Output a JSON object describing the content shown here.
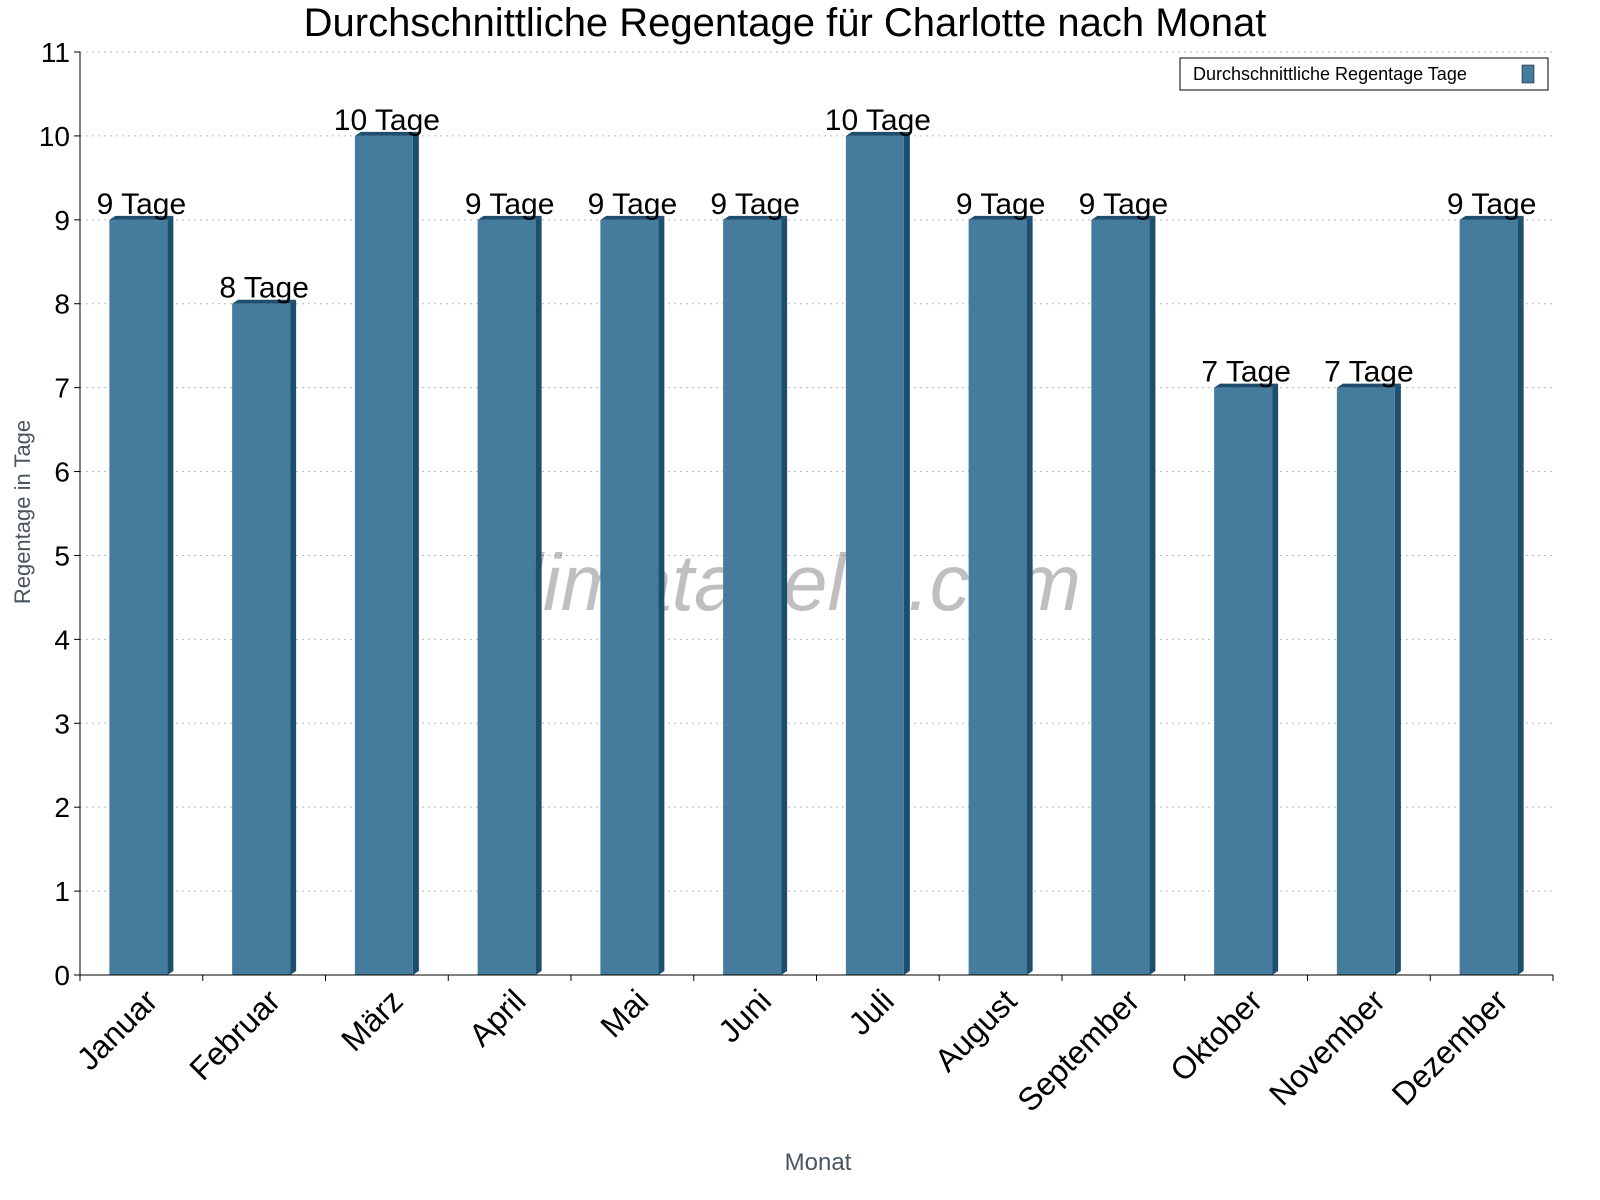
{
  "chart_data": {
    "type": "bar",
    "title": "Durchschnittliche Regentage für Charlotte nach Monat",
    "xlabel": "Monat",
    "ylabel": "Regentage in Tage",
    "categories": [
      "Januar",
      "Februar",
      "März",
      "April",
      "Mai",
      "Juni",
      "Juli",
      "August",
      "September",
      "Oktober",
      "November",
      "Dezember"
    ],
    "series": [
      {
        "name": "Durchschnittliche Regentage Tage",
        "values": [
          9,
          8,
          10,
          9,
          9,
          9,
          10,
          9,
          9,
          7,
          7,
          9
        ],
        "color": "#457b9d",
        "side_color": "#1d4e6e"
      }
    ],
    "data_labels": [
      "9 Tage",
      "8 Tage",
      "10 Tage",
      "9 Tage",
      "9 Tage",
      "9 Tage",
      "10 Tage",
      "9 Tage",
      "9 Tage",
      "7 Tage",
      "7 Tage",
      "9 Tage"
    ],
    "ylim": [
      0,
      11
    ],
    "yticks": [
      "0",
      "1",
      "2",
      "3",
      "4",
      "5",
      "6",
      "7",
      "8",
      "9",
      "10",
      "11"
    ],
    "grid": true,
    "legend_position": "top-right",
    "watermark": "klimatabelle.com"
  }
}
